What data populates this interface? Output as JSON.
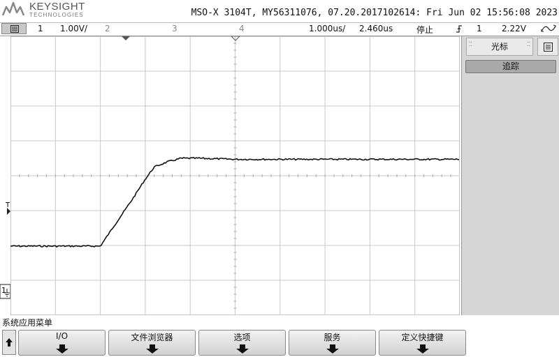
{
  "header": {
    "brand": "KEYSIGHT",
    "brand_sub": "TECHNOLOGIES",
    "instrument_info": "MSO-X 3104T, MY56311076, 07.20.2017102614: Fri Jun 02 15:56:08 2023"
  },
  "status_bar": {
    "channels": [
      "1",
      "2",
      "3",
      "4"
    ],
    "ch1_scale": "1.00V/",
    "time_scale": "1.000us/",
    "time_delay": "2.460us",
    "run_state": "停止",
    "trigger_source": "1",
    "trigger_level": "2.22V"
  },
  "plot": {
    "trigger_level_marker": "T",
    "ch1_marker": "1"
  },
  "right_panel": {
    "tab_label": "光标",
    "tracking_button": "追踪"
  },
  "softkeys": {
    "title": "系统应用菜单",
    "items": [
      "I/O",
      "文件浏览器",
      "选项",
      "服务",
      "定义快捷键"
    ]
  },
  "waveform": {
    "channel": "1",
    "color": "#111111",
    "grid_color": "#c8c8c8",
    "background": "#ffffff",
    "vertical_divisions": 8,
    "horizontal_divisions": 10,
    "x_units": "div",
    "y_units": "div_from_top",
    "points_x": [
      0,
      2.0,
      2.3,
      2.7,
      3.0,
      3.2,
      3.5,
      3.8,
      4.2,
      5.0,
      10.0
    ],
    "points_y": [
      6.02,
      6.02,
      5.45,
      4.7,
      4.1,
      3.75,
      3.6,
      3.5,
      3.5,
      3.53,
      3.53
    ]
  }
}
